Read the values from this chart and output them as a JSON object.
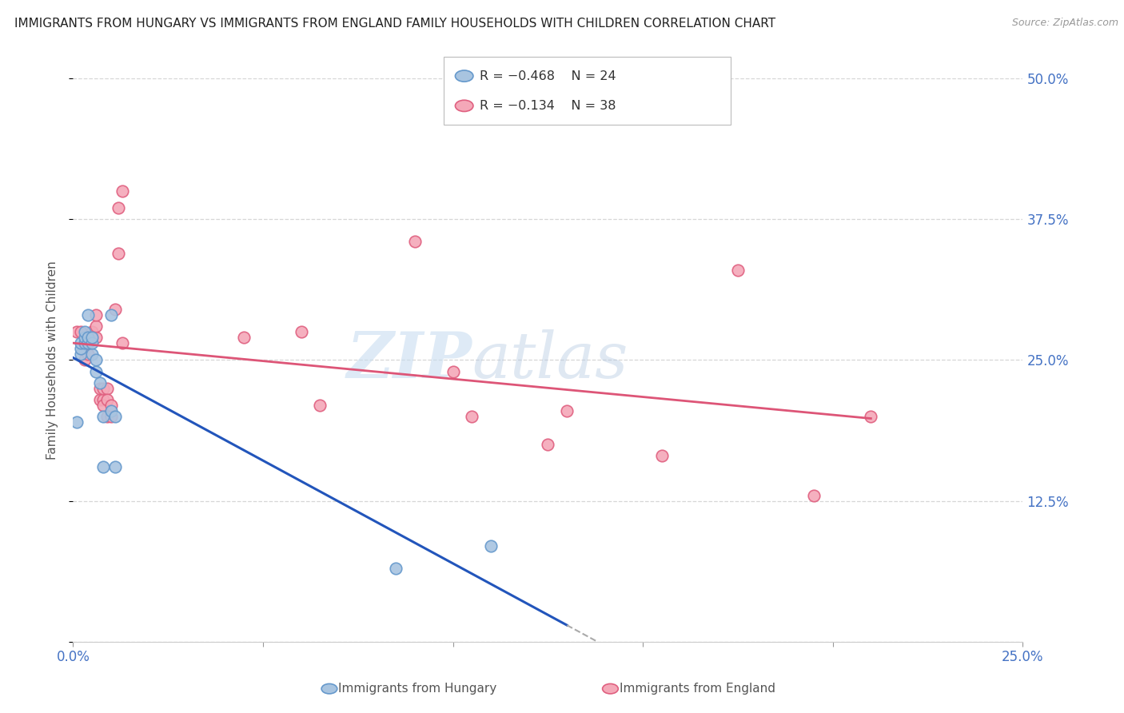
{
  "title": "IMMIGRANTS FROM HUNGARY VS IMMIGRANTS FROM ENGLAND FAMILY HOUSEHOLDS WITH CHILDREN CORRELATION CHART",
  "source": "Source: ZipAtlas.com",
  "ylabel": "Family Households with Children",
  "xlim": [
    0.0,
    0.25
  ],
  "ylim": [
    0.0,
    0.5
  ],
  "x_ticks": [
    0.0,
    0.05,
    0.1,
    0.15,
    0.2,
    0.25
  ],
  "x_tick_labels": [
    "0.0%",
    "",
    "",
    "",
    "",
    "25.0%"
  ],
  "y_ticks_right": [
    0.0,
    0.125,
    0.25,
    0.375,
    0.5
  ],
  "y_tick_labels_right": [
    "",
    "12.5%",
    "25.0%",
    "37.5%",
    "50.0%"
  ],
  "hungary_color": "#a8c4e0",
  "england_color": "#f4a8b8",
  "hungary_edge": "#6699cc",
  "england_edge": "#e06080",
  "trend_hungary_color": "#2255bb",
  "trend_england_color": "#dd5577",
  "legend_R_hungary": "-0.468",
  "legend_N_hungary": "24",
  "legend_R_england": "-0.134",
  "legend_N_england": "38",
  "watermark_zip": "ZIP",
  "watermark_atlas": "atlas",
  "hungary_x": [
    0.004,
    0.01,
    0.001,
    0.002,
    0.002,
    0.002,
    0.003,
    0.003,
    0.003,
    0.004,
    0.004,
    0.005,
    0.005,
    0.005,
    0.006,
    0.006,
    0.007,
    0.008,
    0.008,
    0.01,
    0.011,
    0.011,
    0.085,
    0.11
  ],
  "hungary_y": [
    0.29,
    0.29,
    0.195,
    0.255,
    0.26,
    0.265,
    0.265,
    0.27,
    0.275,
    0.265,
    0.27,
    0.255,
    0.265,
    0.27,
    0.24,
    0.25,
    0.23,
    0.155,
    0.2,
    0.205,
    0.155,
    0.2,
    0.065,
    0.085
  ],
  "england_x": [
    0.001,
    0.002,
    0.003,
    0.003,
    0.004,
    0.004,
    0.005,
    0.005,
    0.006,
    0.006,
    0.006,
    0.007,
    0.007,
    0.008,
    0.008,
    0.008,
    0.009,
    0.009,
    0.009,
    0.01,
    0.01,
    0.011,
    0.012,
    0.012,
    0.013,
    0.013,
    0.045,
    0.06,
    0.065,
    0.09,
    0.1,
    0.105,
    0.125,
    0.13,
    0.155,
    0.175,
    0.195,
    0.21
  ],
  "england_y": [
    0.275,
    0.275,
    0.25,
    0.26,
    0.255,
    0.265,
    0.27,
    0.275,
    0.27,
    0.28,
    0.29,
    0.215,
    0.225,
    0.215,
    0.225,
    0.21,
    0.2,
    0.225,
    0.215,
    0.2,
    0.21,
    0.295,
    0.385,
    0.345,
    0.4,
    0.265,
    0.27,
    0.275,
    0.21,
    0.355,
    0.24,
    0.2,
    0.175,
    0.205,
    0.165,
    0.33,
    0.13,
    0.2
  ],
  "background_color": "#ffffff",
  "grid_color": "#cccccc",
  "title_fontsize": 11,
  "axis_label_color": "#4472c4",
  "marker_size": 110
}
